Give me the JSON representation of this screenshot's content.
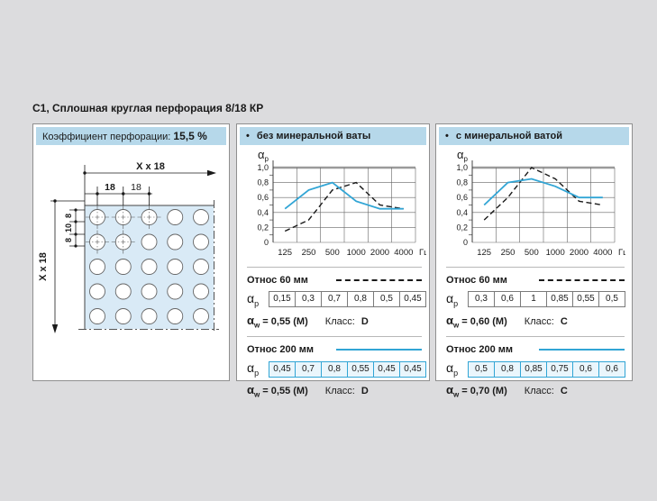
{
  "page": {
    "title": "C1, Сплошная круглая перфорация 8/18 КР"
  },
  "symbols": {
    "alpha": "α",
    "sub_p": "p",
    "sub_w": "w",
    "bullet": "•"
  },
  "left_panel": {
    "header_label": "Коэффициент перфорации:",
    "header_value": "15,5 %",
    "dims": {
      "top": "X x 18",
      "left": "X x 18",
      "pitch_a": "18",
      "pitch_b": "18",
      "d1": "8",
      "gap": "10",
      "d2": "8"
    }
  },
  "panels": [
    {
      "title": "без минеральной ваты",
      "sections": [
        {
          "label": "Относ 60 мм",
          "line_style": "dashed",
          "values": [
            "0,15",
            "0,3",
            "0,7",
            "0,8",
            "0,5",
            "0,45"
          ],
          "alpha_w": "= 0,55 (M)",
          "class_label": "Класс:",
          "class_value": "D"
        },
        {
          "label": "Относ 200 мм",
          "line_style": "solid",
          "values": [
            "0,45",
            "0,7",
            "0,8",
            "0,55",
            "0,45",
            "0,45"
          ],
          "alpha_w": "= 0,55 (M)",
          "class_label": "Класс:",
          "class_value": "D"
        }
      ]
    },
    {
      "title": "с минеральной ватой",
      "sections": [
        {
          "label": "Относ 60 мм",
          "line_style": "dashed",
          "values": [
            "0,3",
            "0,6",
            "1",
            "0,85",
            "0,55",
            "0,5"
          ],
          "alpha_w": "= 0,60 (M)",
          "class_label": "Класс:",
          "class_value": "C"
        },
        {
          "label": "Относ 200 мм",
          "line_style": "solid",
          "values": [
            "0,5",
            "0,8",
            "0,85",
            "0,75",
            "0,6",
            "0,6"
          ],
          "alpha_w": "= 0,70 (M)",
          "class_label": "Класс:",
          "class_value": "C"
        }
      ]
    }
  ],
  "chart_data": [
    {
      "type": "line",
      "title": "без минеральной ваты",
      "x": [
        125,
        250,
        500,
        1000,
        2000,
        4000
      ],
      "x_tick_labels": [
        "125",
        "250",
        "500",
        "1000",
        "2000",
        "4000"
      ],
      "xlabel": "Гц",
      "ylabel": "αp",
      "ylim": [
        0,
        1.0
      ],
      "ytick_step": 0.2,
      "ytick_labels": [
        "0",
        "0,2",
        "0,4",
        "0,6",
        "0,8",
        "1,0"
      ],
      "grid": true,
      "legend_position": "none",
      "series": [
        {
          "name": "Относ 60 мм",
          "style": "dashed",
          "color": "#1a1a1a",
          "values": [
            0.15,
            0.3,
            0.7,
            0.8,
            0.5,
            0.45
          ]
        },
        {
          "name": "Относ 200 мм",
          "style": "solid",
          "color": "#31a5d5",
          "values": [
            0.45,
            0.7,
            0.8,
            0.55,
            0.45,
            0.45
          ]
        }
      ]
    },
    {
      "type": "line",
      "title": "с минеральной ватой",
      "x": [
        125,
        250,
        500,
        1000,
        2000,
        4000
      ],
      "x_tick_labels": [
        "125",
        "250",
        "500",
        "1000",
        "2000",
        "4000"
      ],
      "xlabel": "Гц",
      "ylabel": "αp",
      "ylim": [
        0,
        1.0
      ],
      "ytick_step": 0.2,
      "ytick_labels": [
        "0",
        "0,2",
        "0,4",
        "0,6",
        "0,8",
        "1,0"
      ],
      "grid": true,
      "legend_position": "none",
      "series": [
        {
          "name": "Относ 60 мм",
          "style": "dashed",
          "color": "#1a1a1a",
          "values": [
            0.3,
            0.6,
            1.0,
            0.85,
            0.55,
            0.5
          ]
        },
        {
          "name": "Относ 200 мм",
          "style": "solid",
          "color": "#31a5d5",
          "values": [
            0.5,
            0.8,
            0.85,
            0.75,
            0.6,
            0.6
          ]
        }
      ]
    }
  ],
  "colors": {
    "accent_cyan": "#31a5d5",
    "header_blue": "#b6d8ea",
    "perforation_fill": "#d9eaf6",
    "background": "#dcdcde"
  }
}
